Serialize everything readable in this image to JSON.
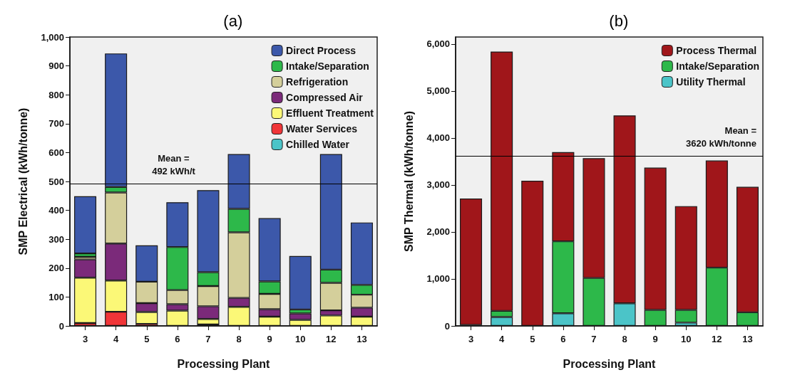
{
  "chart_data": [
    {
      "type": "bar",
      "stacked": true,
      "title": "(a)",
      "xlabel": "Processing Plant",
      "ylabel": "SMP Electrical (kWh/tonne)",
      "categories": [
        "3",
        "4",
        "5",
        "6",
        "7",
        "8",
        "9",
        "10",
        "12",
        "13"
      ],
      "series": [
        {
          "name": "Chilled Water",
          "color": "#4bc4c8",
          "values": [
            null,
            null,
            null,
            null,
            5,
            null,
            null,
            null,
            null,
            null
          ]
        },
        {
          "name": "Water Services",
          "color": "#f03538",
          "values": [
            10,
            49,
            7,
            null,
            null,
            null,
            null,
            null,
            null,
            null
          ]
        },
        {
          "name": "Effluent Treatment",
          "color": "#fbf877",
          "values": [
            157,
            108,
            41,
            53,
            19,
            66,
            32,
            21,
            36,
            32
          ]
        },
        {
          "name": "Compressed Air",
          "color": "#7b2a7a",
          "values": [
            63,
            128,
            31,
            22,
            44,
            31,
            26,
            22,
            18,
            31
          ]
        },
        {
          "name": "Refrigeration",
          "color": "#d4cf9b",
          "values": [
            9,
            177,
            74,
            49,
            70,
            227,
            53,
            null,
            95,
            45
          ]
        },
        {
          "name": "Intake/Separation",
          "color": "#2db84a",
          "values": [
            12,
            19,
            null,
            149,
            48,
            81,
            43,
            14,
            46,
            34
          ]
        },
        {
          "name": "Direct Process",
          "color": "#3c58aa",
          "values": [
            198,
            462,
            126,
            155,
            284,
            190,
            219,
            185,
            400,
            216
          ]
        }
      ],
      "ylim": [
        0,
        1000
      ],
      "yticks": [
        0,
        100,
        200,
        300,
        400,
        500,
        600,
        700,
        800,
        900,
        {
          "value": 1000,
          "label": "1,000"
        }
      ],
      "ref_lines": [
        {
          "axis": "y",
          "value": 492,
          "label": "Mean =\n492 kWh/t",
          "color": "#000000"
        }
      ],
      "grid": false,
      "legend": "top right"
    },
    {
      "type": "bar",
      "stacked": true,
      "title": "(b)",
      "xlabel": "Processing Plant",
      "ylabel": "SMP Thermal (kWh/tonne)",
      "categories": [
        "3",
        "4",
        "5",
        "6",
        "7",
        "8",
        "9",
        "10",
        "12",
        "13"
      ],
      "series": [
        {
          "name": "Utility Thermal",
          "color": "#4bc4c8",
          "values": [
            null,
            190,
            null,
            270,
            null,
            480,
            null,
            70,
            null,
            null
          ]
        },
        {
          "name": "Intake/Separation",
          "color": "#2db84a",
          "values": [
            20,
            130,
            null,
            1530,
            1020,
            null,
            340,
            270,
            1240,
            290
          ]
        },
        {
          "name": "Process Thermal",
          "color": "#a0161a",
          "values": [
            2690,
            5520,
            3090,
            1900,
            2550,
            4000,
            3030,
            2210,
            2280,
            2670
          ]
        }
      ],
      "ylim": [
        0,
        6150
      ],
      "yticks": [
        0,
        {
          "value": 1000,
          "label": "1,000"
        },
        {
          "value": 2000,
          "label": "2,000"
        },
        {
          "value": 3000,
          "label": "3,000"
        },
        {
          "value": 4000,
          "label": "4,000"
        },
        {
          "value": 5000,
          "label": "5,000"
        },
        {
          "value": 6000,
          "label": "6,000"
        }
      ],
      "ref_lines": [
        {
          "axis": "y",
          "value": 3620,
          "label": "Mean =\n3620 kWh/tonne",
          "color": "#000000"
        }
      ],
      "grid": false,
      "legend": "top right"
    }
  ]
}
